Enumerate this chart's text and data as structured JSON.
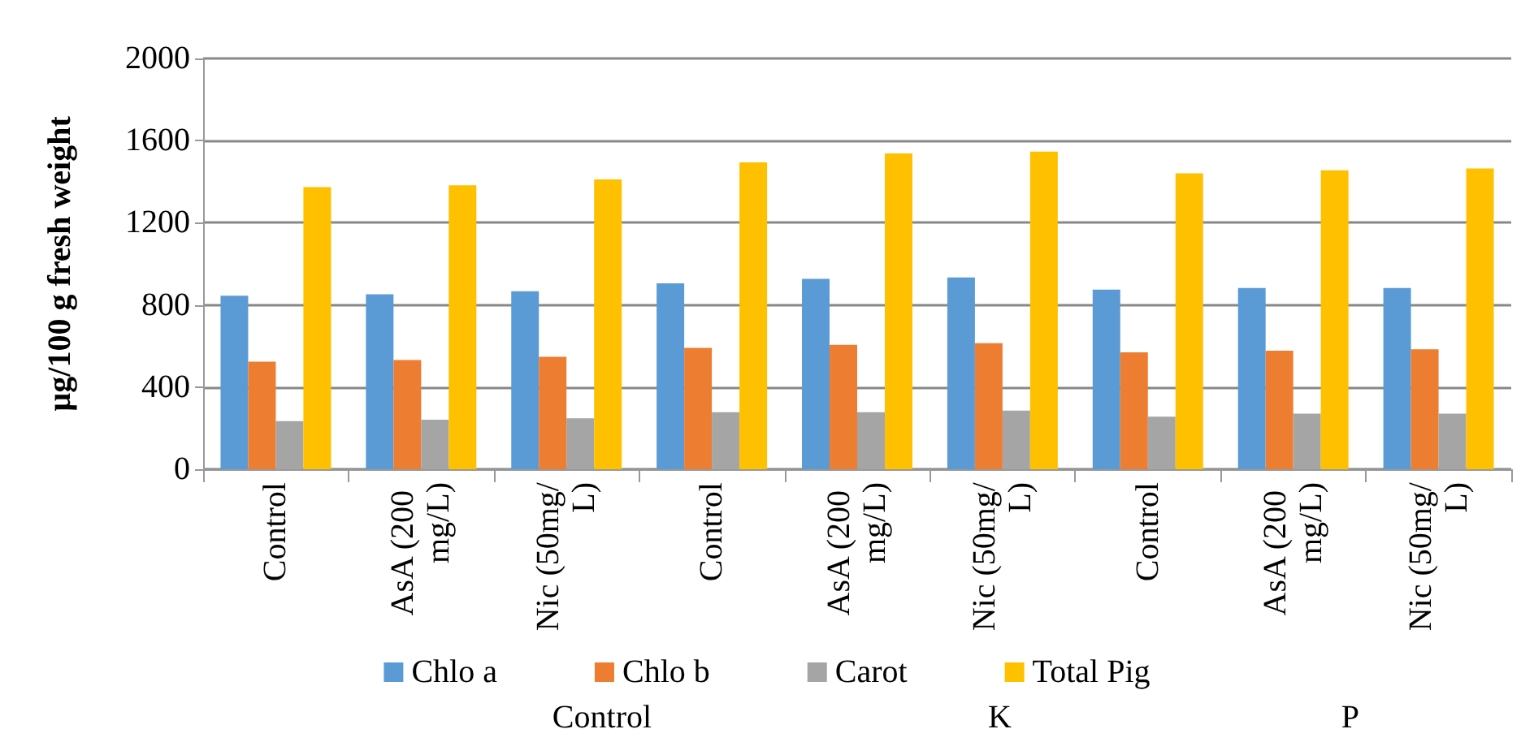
{
  "chart_data": {
    "type": "bar",
    "ylabel": "µg/100 g fresh weight",
    "categories": [
      "Control",
      "AsA (200 mg/L)",
      "Nic (50mg/L)",
      "Control",
      "AsA (200 mg/L)",
      "Nic (50mg/L)",
      "Control",
      "AsA (200 mg/L)",
      "Nic (50mg/L)"
    ],
    "series": [
      {
        "name": "Chlo a",
        "color": "#5b9bd5",
        "values": [
          845,
          852,
          867,
          905,
          927,
          934,
          875,
          882,
          882
        ]
      },
      {
        "name": "Chlo b",
        "color": "#ed7d31",
        "values": [
          524,
          532,
          547,
          591,
          606,
          614,
          569,
          577,
          584
        ]
      },
      {
        "name": "Carot",
        "color": "#a5a5a5",
        "values": [
          234,
          241,
          248,
          278,
          278,
          286,
          256,
          271,
          271
        ]
      },
      {
        "name": "Total Pig",
        "color": "#ffc000",
        "values": [
          1374,
          1382,
          1411,
          1494,
          1538,
          1546,
          1441,
          1456,
          1464
        ]
      }
    ],
    "ylim": [
      0,
      2000
    ],
    "yticks": [
      0,
      400,
      800,
      1200,
      1600,
      2000
    ],
    "grid": "y",
    "legend": "bottom",
    "annotations": [
      "Control",
      "K",
      "P"
    ]
  }
}
